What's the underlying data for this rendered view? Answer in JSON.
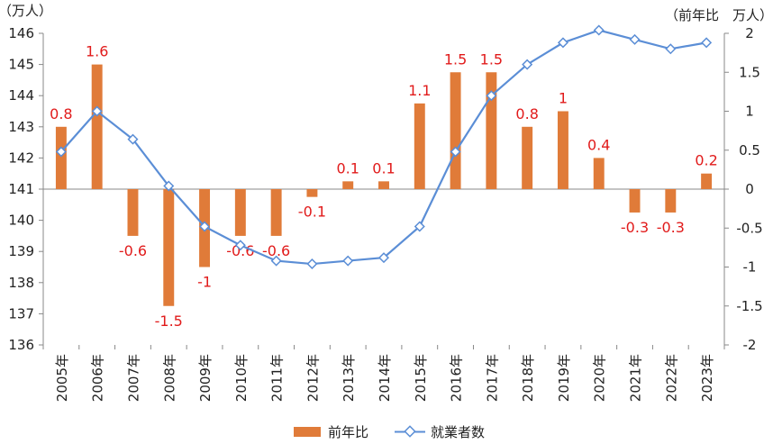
{
  "chart_data": {
    "type": "bar+line",
    "left_axis_unit": "（万人）",
    "right_axis_unit": "（前年比　万人）",
    "categories": [
      "2005年",
      "2006年",
      "2007年",
      "2008年",
      "2009年",
      "2010年",
      "2011年",
      "2012年",
      "2013年",
      "2014年",
      "2015年",
      "2016年",
      "2017年",
      "2018年",
      "2019年",
      "2020年",
      "2021年",
      "2022年",
      "2023年"
    ],
    "left_axis": {
      "min": 136,
      "max": 146,
      "step": 1,
      "ticks": [
        "136",
        "137",
        "138",
        "139",
        "140",
        "141",
        "142",
        "143",
        "144",
        "145",
        "146"
      ]
    },
    "right_axis": {
      "min": -2,
      "max": 2,
      "step": 0.5,
      "ticks": [
        "-2",
        "-1.5",
        "-1",
        "-0.5",
        "0",
        "0.5",
        "1",
        "1.5",
        "2"
      ]
    },
    "series": [
      {
        "name": "前年比",
        "type": "bar",
        "axis": "right",
        "color": "#e07b39",
        "values": [
          0.8,
          1.6,
          -0.6,
          -1.5,
          -1,
          -0.6,
          -0.6,
          -0.1,
          0.1,
          0.1,
          1.1,
          1.5,
          1.5,
          0.8,
          1,
          0.4,
          -0.3,
          -0.3,
          0.2
        ],
        "labels": [
          "0.8",
          "1.6",
          "-0.6",
          "-1.5",
          "-1",
          "-0.6",
          "-0.6",
          "-0.1",
          "0.1",
          "0.1",
          "1.1",
          "1.5",
          "1.5",
          "0.8",
          "1",
          "0.4",
          "-0.3",
          "-0.3",
          "0.2"
        ]
      },
      {
        "name": "就業者数",
        "type": "line",
        "axis": "left",
        "color": "#5b8ed6",
        "values": [
          142.2,
          143.5,
          142.6,
          141.1,
          139.8,
          139.2,
          138.7,
          138.6,
          138.7,
          138.8,
          139.8,
          142.2,
          144.0,
          145.0,
          145.7,
          146.1,
          145.8,
          145.5,
          145.7
        ]
      }
    ],
    "data_label_color": "#e11b1b",
    "legend": {
      "position": "bottom",
      "items": [
        "前年比",
        "就業者数"
      ]
    },
    "grid": false
  }
}
